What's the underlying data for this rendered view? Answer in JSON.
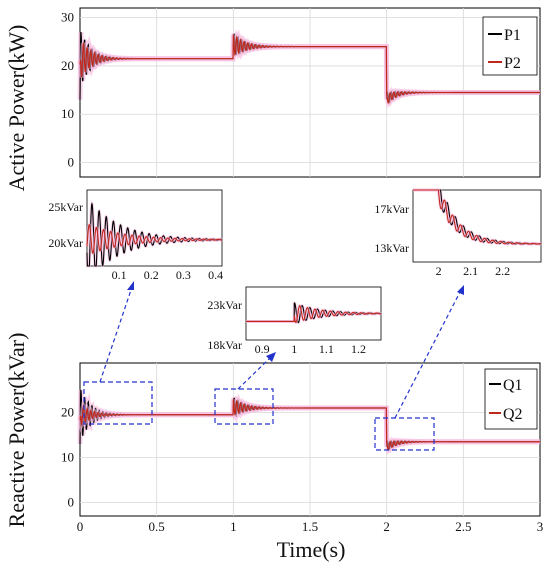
{
  "colors": {
    "p1": "#000000",
    "p2": "#c0281c",
    "glow": "#f7b8de",
    "box": "#2233cc"
  },
  "chart_data": [
    {
      "type": "line",
      "ylabel": "Active Power(kW)",
      "xlim": [
        0,
        3
      ],
      "ylim": [
        -3,
        32
      ],
      "yticks": [
        "0",
        "10",
        "20",
        "30"
      ],
      "legend": {
        "placement": "top-right",
        "entries": [
          "P1",
          "P2"
        ]
      },
      "series": [
        {
          "name": "P1",
          "levels": [
            [
              0,
              21.5
            ],
            [
              1,
              24
            ],
            [
              2,
              14.5
            ]
          ]
        },
        {
          "name": "P2",
          "levels": [
            [
              0,
              21.5
            ],
            [
              1,
              24
            ],
            [
              2,
              14.5
            ]
          ]
        }
      ],
      "grid": true
    },
    {
      "type": "line",
      "ylabel": "Reactive Power(kVar)",
      "xlabel": "Time(s)",
      "xlim": [
        0,
        3
      ],
      "ylim": [
        -3,
        31
      ],
      "xticks": [
        "0",
        "0.5",
        "1",
        "1.5",
        "2",
        "2.5",
        "3"
      ],
      "yticks": [
        "0",
        "10",
        "20"
      ],
      "legend": {
        "placement": "top-right",
        "entries": [
          "Q1",
          "Q2"
        ]
      },
      "series": [
        {
          "name": "Q1",
          "levels": [
            [
              0,
              19.5
            ],
            [
              1,
              21
            ],
            [
              2,
              13.5
            ]
          ]
        },
        {
          "name": "Q2",
          "levels": [
            [
              0,
              19.5
            ],
            [
              1,
              21
            ],
            [
              2,
              13.5
            ]
          ]
        }
      ],
      "grid": true
    },
    {
      "type": "line",
      "inset": "zoom-1",
      "xlim": [
        0,
        0.42
      ],
      "xticks": [
        "0.1",
        "0.2",
        "0.3",
        "0.4"
      ],
      "yticks": [
        "25kVar",
        "20kVar"
      ]
    },
    {
      "type": "line",
      "inset": "zoom-2",
      "xlim": [
        0.85,
        1.27
      ],
      "xticks": [
        "0.9",
        "1",
        "1.1",
        "1.2"
      ],
      "yticks": [
        "23kVar",
        "18kVar"
      ]
    },
    {
      "type": "line",
      "inset": "zoom-3",
      "xlim": [
        1.92,
        2.32
      ],
      "xticks": [
        "2",
        "2.1",
        "2.2"
      ],
      "yticks": [
        "17kVar",
        "13kVar"
      ]
    }
  ]
}
